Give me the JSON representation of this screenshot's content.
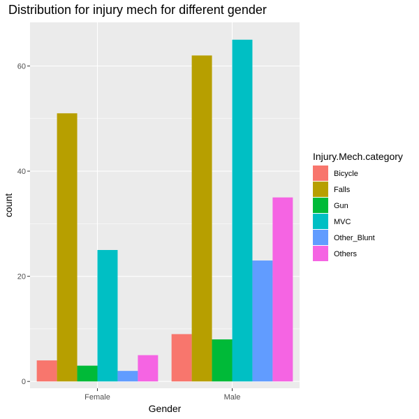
{
  "chart_data": {
    "type": "bar",
    "title": "Distribution for injury mech for different gender",
    "xlabel": "Gender",
    "ylabel": "count",
    "categories": [
      "Female",
      "Male"
    ],
    "legend_title": "Injury.Mech.category",
    "legend_position": "right",
    "grid": true,
    "ylim": [
      -1.3,
      68.3
    ],
    "yticks": [
      0,
      20,
      40,
      60
    ],
    "series": [
      {
        "name": "Bicycle",
        "color": "#F8766D",
        "values": [
          4,
          9
        ]
      },
      {
        "name": "Falls",
        "color": "#B79F00",
        "values": [
          51,
          62
        ]
      },
      {
        "name": "Gun",
        "color": "#00BA38",
        "values": [
          3,
          8
        ]
      },
      {
        "name": "MVC",
        "color": "#00BFC4",
        "values": [
          25,
          65
        ]
      },
      {
        "name": "Other_Blunt",
        "color": "#619CFF",
        "values": [
          2,
          23
        ]
      },
      {
        "name": "Others",
        "color": "#F564E3",
        "values": [
          5,
          35
        ]
      }
    ]
  }
}
